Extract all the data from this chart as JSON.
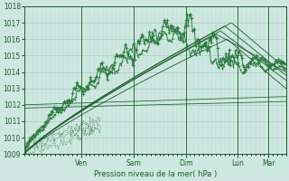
{
  "xlabel": "Pression niveau de la mer( hPa )",
  "bg_color": "#cde8e0",
  "grid_color_major": "#9cc4bc",
  "grid_color_minor": "#b8d8d0",
  "line_dark": "#1a5c2a",
  "line_medium": "#2d7a40",
  "ylim": [
    1009,
    1018
  ],
  "yticks": [
    1009,
    1010,
    1011,
    1012,
    1013,
    1014,
    1015,
    1016,
    1017,
    1018
  ],
  "xlim": [
    0,
    120
  ],
  "day_labels": [
    "Ven",
    "Sam",
    "Dim",
    "Lun",
    "Mar"
  ],
  "day_x": [
    26,
    50,
    74,
    98,
    112
  ],
  "day_sep_x": [
    26,
    50,
    74,
    98,
    112
  ]
}
